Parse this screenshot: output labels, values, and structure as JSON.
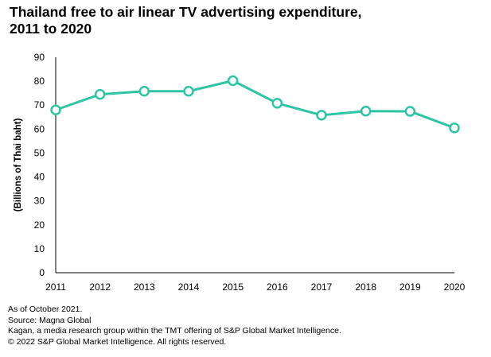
{
  "chart_data": {
    "type": "line",
    "title_lines": [
      "Thailand free to air linear TV advertising expenditure,",
      "2011 to 2020"
    ],
    "xlabel": "",
    "ylabel": "(Billions of Thai baht)",
    "categories": [
      "2011",
      "2012",
      "2013",
      "2014",
      "2015",
      "2016",
      "2017",
      "2018",
      "2019",
      "2020"
    ],
    "series": [
      {
        "values": [
          68,
          74.5,
          75.8,
          75.8,
          80.2,
          70.8,
          65.8,
          67.5,
          67.4,
          60.5
        ],
        "color": "#2ec4a4"
      }
    ],
    "ylim": [
      0,
      90
    ],
    "yticks": [
      0,
      10,
      20,
      30,
      40,
      50,
      60,
      70,
      80,
      90
    ],
    "grid": false,
    "legend": "none"
  },
  "notes": [
    "As of October 2021.",
    "Source: Magna Global",
    "Kagan, a media research group within the TMT offering of S&P Global Market Intelligence.",
    "© 2022 S&P Global Market Intelligence. All rights reserved."
  ]
}
